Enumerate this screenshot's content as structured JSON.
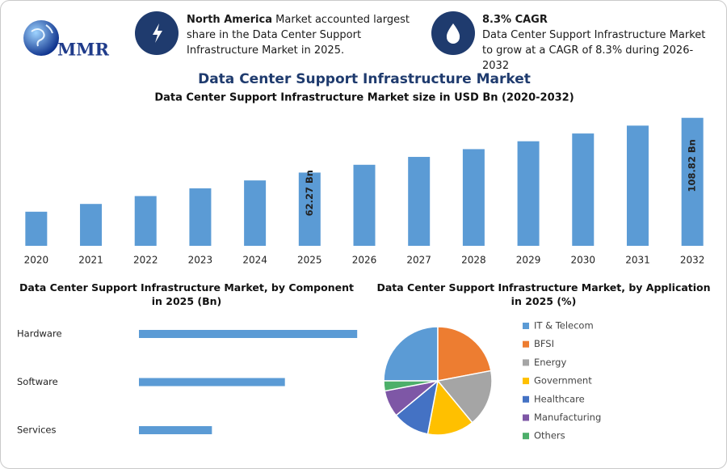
{
  "header": {
    "logo": "MMR",
    "fact1": {
      "bold": "North America",
      "text": "Market accounted largest share in the Data Center Support Infrastructure Market in 2025."
    },
    "fact2": {
      "title": "8.3% CAGR",
      "text": "Data Center Support Infrastructure Market to grow at a CAGR of 8.3% during 2026-2032"
    }
  },
  "title": "Data Center Support Infrastructure Market",
  "chart_data": [
    {
      "type": "bar",
      "title": "Data Center Support Infrastructure Market size in USD Bn (2020-2032)",
      "categories": [
        "2020",
        "2021",
        "2022",
        "2023",
        "2024",
        "2025",
        "2026",
        "2027",
        "2028",
        "2029",
        "2030",
        "2031",
        "2032"
      ],
      "values": [
        29.0,
        35.6,
        42.3,
        48.9,
        55.6,
        62.27,
        68.9,
        75.6,
        82.2,
        88.9,
        95.5,
        102.2,
        108.82
      ],
      "value_labels": [
        null,
        null,
        null,
        null,
        null,
        "62.27 Bn",
        null,
        null,
        null,
        null,
        null,
        null,
        "108.82 Bn"
      ],
      "color": "#5b9bd5",
      "ylim": [
        0,
        110
      ]
    },
    {
      "type": "hbar",
      "title": "Data Center Support Infrastructure Market, by Component in 2025 (Bn)",
      "categories": [
        "Hardware",
        "Software",
        "Services"
      ],
      "values": [
        31.1,
        20.8,
        10.4
      ],
      "color": "#5b9bd5",
      "xlim": [
        0,
        32
      ]
    },
    {
      "type": "pie",
      "title": "Data Center Support Infrastructure Market, by Application in 2025 (%)",
      "categories": [
        "IT & Telecom",
        "BFSI",
        "Energy",
        "Government",
        "Healthcare",
        "Manufacturing",
        "Others"
      ],
      "values": [
        25,
        22,
        17,
        14,
        11,
        8,
        3
      ],
      "colors": [
        "#5b9bd5",
        "#ed7d31",
        "#a5a5a5",
        "#ffc000",
        "#4472c4",
        "#7e57a6",
        "#4caf6a"
      ]
    }
  ]
}
